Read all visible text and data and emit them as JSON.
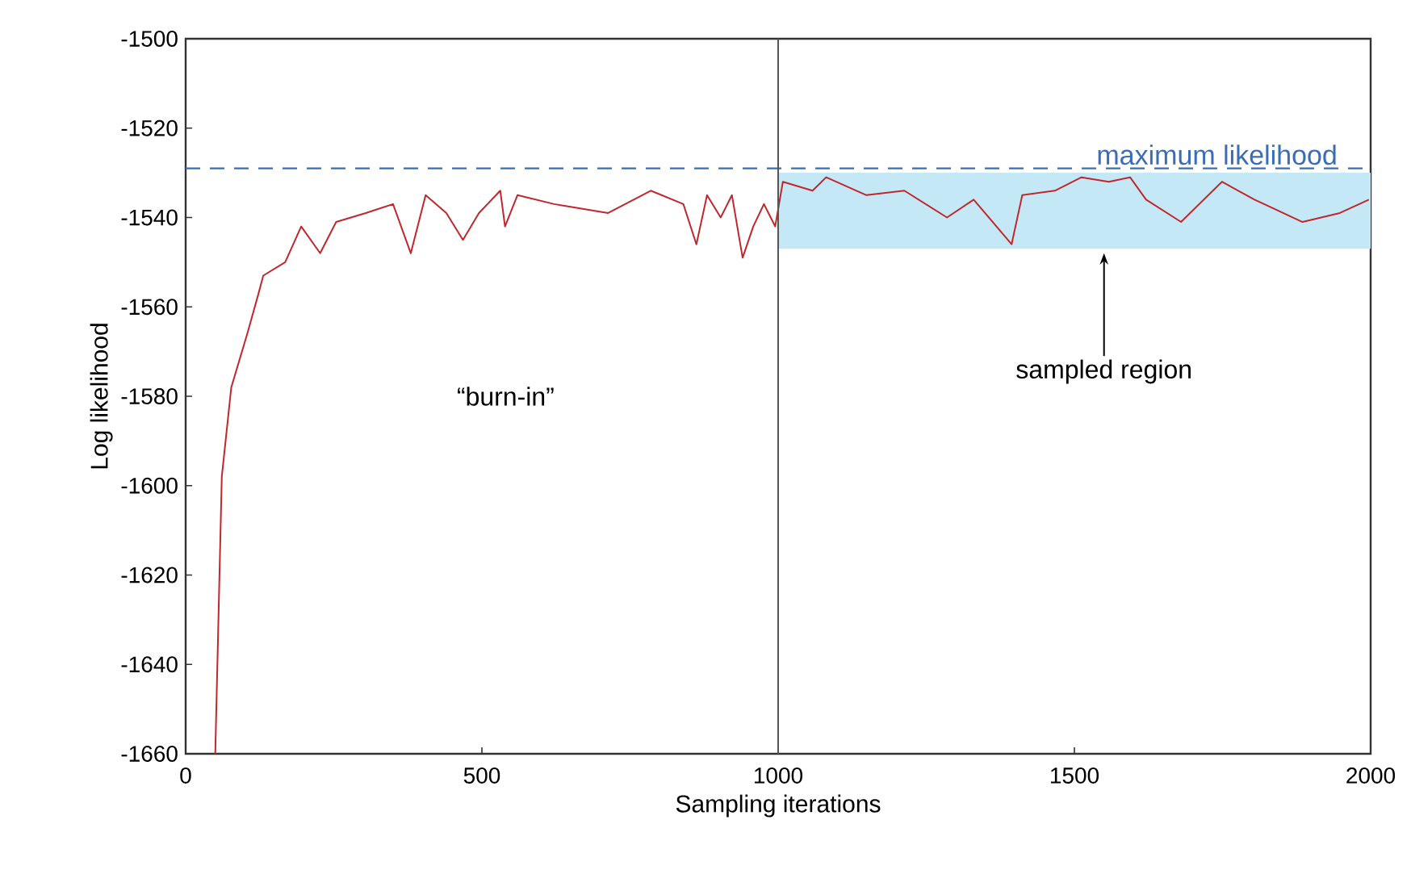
{
  "chart_data": {
    "type": "line",
    "xlabel": "Sampling iterations",
    "ylabel": "Log likelihood",
    "xlim": [
      0,
      2000
    ],
    "xticks": [
      0,
      500,
      1000,
      1500,
      2000
    ],
    "ylim": [
      -1660,
      -1500
    ],
    "yticks": [
      -1660,
      -1640,
      -1620,
      -1600,
      -1580,
      -1560,
      -1540,
      -1520,
      -1500
    ],
    "x": [
      50,
      61,
      77,
      104,
      123,
      131,
      168,
      195,
      227,
      254,
      304,
      350,
      380,
      405,
      440,
      468,
      495,
      531,
      539,
      560,
      622,
      713,
      785,
      840,
      862,
      880,
      903,
      922,
      940,
      958,
      976,
      995,
      1008,
      1058,
      1081,
      1149,
      1213,
      1285,
      1330,
      1394,
      1412,
      1467,
      1512,
      1558,
      1594,
      1621,
      1680,
      1749,
      1804,
      1885,
      1948,
      1997
    ],
    "series": [
      {
        "color": "#c0272d",
        "values": [
          -1660,
          -1598,
          -1578,
          -1566,
          -1557,
          -1553,
          -1550,
          -1542,
          -1548,
          -1541,
          -1539,
          -1537,
          -1548,
          -1535,
          -1539,
          -1545,
          -1539,
          -1534,
          -1542,
          -1535,
          -1537,
          -1539,
          -1534,
          -1537,
          -1546,
          -1535,
          -1540,
          -1535,
          -1549,
          -1542,
          -1537,
          -1542,
          -1532,
          -1534,
          -1531,
          -1535,
          -1534,
          -1540,
          -1536,
          -1546,
          -1535,
          -1534,
          -1531,
          -1532,
          -1531,
          -1536,
          -1541,
          -1532,
          -1536,
          -1541,
          -1539,
          -1536
        ]
      }
    ],
    "ref_lines": [
      {
        "axis": "y",
        "value": -1529,
        "label": "maximum likelihood",
        "color": "#3a6db5",
        "line_style": "dashed"
      },
      {
        "axis": "x",
        "value": 1000,
        "color": "#555555"
      }
    ],
    "bands": [
      {
        "axis": "y",
        "from": -1547,
        "to": -1530,
        "color": "#c5e8f7"
      }
    ],
    "annotations": [
      "“burn-in”",
      {
        "text": "sampled region",
        "x": 1550,
        "y": -1547
      }
    ],
    "grid": false,
    "line_style": "solid",
    "marker": "none"
  }
}
